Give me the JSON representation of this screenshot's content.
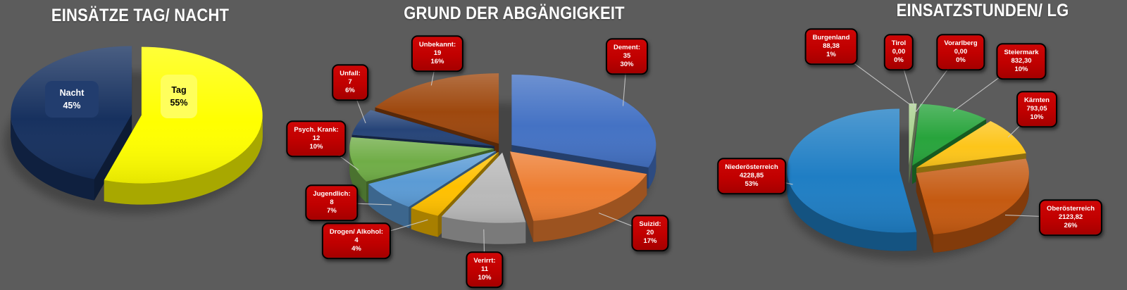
{
  "page": {
    "background": "#5C5C5C",
    "title_color": "#FFFFFF",
    "leader_line_color": "#CBCBCB",
    "callout_bg": "#C00000",
    "callout_border": "#000000",
    "callout_text": "#FFFFFF"
  },
  "chart_data": [
    {
      "type": "pie",
      "title": "EINSÄTZE TAG/ NACHT",
      "style": "3d-exploded-pie",
      "legend_position": "none",
      "slices": [
        {
          "label": "Tag",
          "value": 55,
          "display_value": "55",
          "pct": "55%",
          "color": "#FFFF00",
          "label_bg": "#FFFF5C",
          "label_fg": "#000000"
        },
        {
          "label": "Nacht",
          "value": 45,
          "display_value": "45",
          "pct": "45%",
          "color": "#17315F",
          "label_bg": "#223D6E",
          "label_fg": "#FFFFFF"
        }
      ]
    },
    {
      "type": "pie",
      "title": "GRUND DER ABGÄNGIGKEIT",
      "style": "3d-exploded-pie",
      "legend_position": "none",
      "slices": [
        {
          "label": "Dement:",
          "value": 35,
          "display_value": "35",
          "pct": "30%",
          "color": "#4472C4"
        },
        {
          "label": "Suizid:",
          "value": 20,
          "display_value": "20",
          "pct": "17%",
          "color": "#ED7D31"
        },
        {
          "label": "Verirrt:",
          "value": 11,
          "display_value": "11",
          "pct": "10%",
          "color": "#B9B9B9"
        },
        {
          "label": "Drogen/ Alkohol:",
          "value": 4,
          "display_value": "4",
          "pct": "4%",
          "color": "#FFC000"
        },
        {
          "label": "Jugendlich:",
          "value": 8,
          "display_value": "8",
          "pct": "7%",
          "color": "#5B9BD5"
        },
        {
          "label": "Psych. Krank:",
          "value": 12,
          "display_value": "12",
          "pct": "10%",
          "color": "#70AD47"
        },
        {
          "label": "Unfall:",
          "value": 7,
          "display_value": "7",
          "pct": "6%",
          "color": "#264478"
        },
        {
          "label": "Unbekannt:",
          "value": 19,
          "display_value": "19",
          "pct": "16%",
          "color": "#9E480E"
        }
      ]
    },
    {
      "type": "pie",
      "title": "EINSATZSTUNDEN/ LG",
      "style": "3d-exploded-pie",
      "legend_position": "none",
      "slices": [
        {
          "label": "Burgenland",
          "value": 88.38,
          "display_value": "88,38",
          "pct": "1%",
          "color": "#A9D18E"
        },
        {
          "label": "Tirol",
          "value": 0,
          "display_value": "0,00",
          "pct": "0%",
          "color": "#D9D9D9"
        },
        {
          "label": "Vorarlberg",
          "value": 0,
          "display_value": "0,00",
          "pct": "0%",
          "color": "#D9D9D9"
        },
        {
          "label": "Steiermark",
          "value": 832.3,
          "display_value": "832,30",
          "pct": "10%",
          "color": "#28A43C"
        },
        {
          "label": "Kärnten",
          "value": 793.05,
          "display_value": "793,05",
          "pct": "10%",
          "color": "#FDC51A"
        },
        {
          "label": "Oberösterreich",
          "value": 2123.82,
          "display_value": "2123,82",
          "pct": "26%",
          "color": "#C55A11"
        },
        {
          "label": "Niederösterreich",
          "value": 4228.85,
          "display_value": "4228,85",
          "pct": "53%",
          "color": "#1F7EC4"
        }
      ]
    }
  ]
}
